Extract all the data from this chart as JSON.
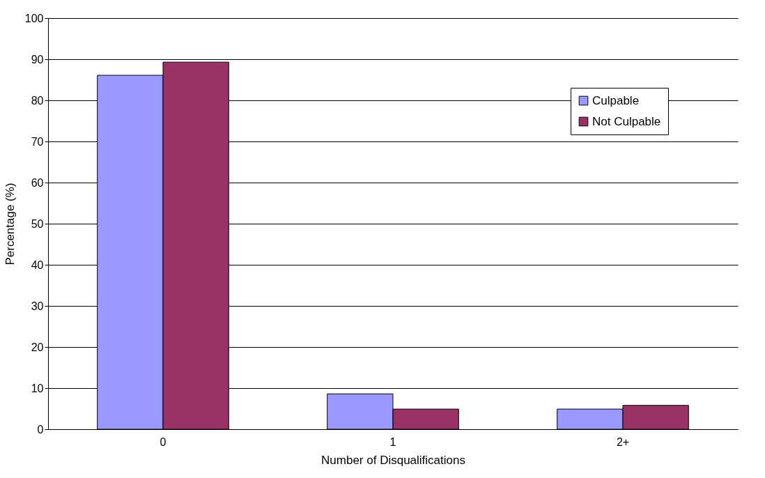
{
  "chart_data": {
    "type": "bar",
    "xlabel": "Number of Disqualifications",
    "ylabel": "Percentage (%)",
    "categories": [
      "0",
      "1",
      "2+"
    ],
    "series": [
      {
        "name": "Culpable",
        "color": "#9999ff",
        "values": [
          86.1,
          8.6,
          4.9
        ]
      },
      {
        "name": "Not Culpable",
        "color": "#993366",
        "values": [
          89.3,
          4.9,
          5.8
        ]
      }
    ],
    "ylim": [
      0,
      100
    ],
    "yticks": [
      0,
      10,
      20,
      30,
      40,
      50,
      60,
      70,
      80,
      90,
      100
    ],
    "grid": "y",
    "legend": "top right"
  }
}
